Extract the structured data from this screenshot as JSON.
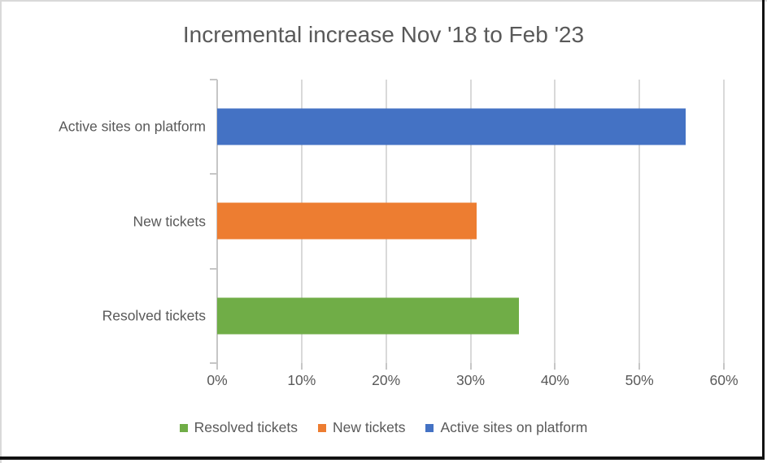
{
  "chart_data": {
    "type": "bar",
    "orientation": "horizontal",
    "title": "Incremental increase Nov '18 to Feb '23",
    "categories": [
      "Active sites on platform",
      "New tickets",
      "Resolved tickets"
    ],
    "values": [
      55.5,
      30.7,
      35.7
    ],
    "bar_colors": [
      "#4472C4",
      "#ED7D31",
      "#70AD47"
    ],
    "xlabel": "",
    "ylabel": "",
    "xlim": [
      0,
      60
    ],
    "x_tick_values": [
      0,
      10,
      20,
      30,
      40,
      50,
      60
    ],
    "x_tick_labels": [
      "0%",
      "10%",
      "20%",
      "30%",
      "40%",
      "50%",
      "60%"
    ],
    "grid": true,
    "legend_position": "bottom",
    "legend": [
      {
        "label": "Resolved tickets",
        "color": "#70AD47"
      },
      {
        "label": "New tickets",
        "color": "#ED7D31"
      },
      {
        "label": "Active sites on platform",
        "color": "#4472C4"
      }
    ]
  },
  "style": {
    "title_color": "#595959",
    "text_color": "#595959",
    "gridline_color": "#D9D9D9",
    "axis_color": "#C6C6C6",
    "background": "#FFFFFF",
    "frame_color": "#121212"
  }
}
